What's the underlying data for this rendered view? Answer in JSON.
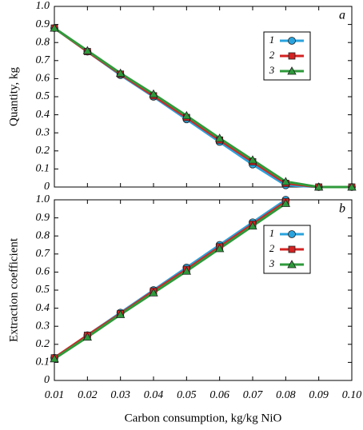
{
  "chart_data": [
    {
      "type": "line",
      "panel_label": "a",
      "ylabel": "Quantity, kg",
      "x": [
        0.01,
        0.02,
        0.03,
        0.04,
        0.05,
        0.06,
        0.07,
        0.08,
        0.09,
        0.1
      ],
      "xlim": [
        0.01,
        0.1
      ],
      "ylim": [
        0,
        1
      ],
      "yticks": [
        0,
        0.1,
        0.2,
        0.3,
        0.4,
        0.5,
        0.6,
        0.7,
        0.8,
        0.9,
        {
          "value": 1,
          "label": "1.0"
        }
      ],
      "legend": "upper right",
      "series": [
        {
          "name": "1",
          "color": "#2aa3dd",
          "marker": "circle",
          "values": [
            0.88,
            0.75,
            0.62,
            0.5,
            0.375,
            0.25,
            0.125,
            0.01,
            0,
            0
          ]
        },
        {
          "name": "2",
          "color": "#d42222",
          "marker": "square",
          "values": [
            0.88,
            0.75,
            0.625,
            0.505,
            0.385,
            0.26,
            0.14,
            0.02,
            0,
            0
          ]
        },
        {
          "name": "3",
          "color": "#2e9a3b",
          "marker": "triangle",
          "values": [
            0.88,
            0.755,
            0.63,
            0.515,
            0.395,
            0.27,
            0.15,
            0.03,
            0,
            0
          ]
        }
      ]
    },
    {
      "type": "line",
      "panel_label": "b",
      "ylabel": "Extraction coefficient",
      "xlabel": "Carbon consumption, kg/kg NiO",
      "x": [
        0.01,
        0.02,
        0.03,
        0.04,
        0.05,
        0.06,
        0.07,
        0.08
      ],
      "xlim": [
        0.01,
        0.1
      ],
      "xticks": [
        0.01,
        0.02,
        0.03,
        0.04,
        0.05,
        0.06,
        0.07,
        0.08,
        0.09,
        {
          "value": 0.1,
          "label": "0.10"
        }
      ],
      "ylim": [
        0,
        1
      ],
      "yticks": [
        0,
        0.1,
        0.2,
        0.3,
        0.4,
        0.5,
        0.6,
        0.7,
        0.8,
        0.9,
        {
          "value": 1,
          "label": "1.0"
        }
      ],
      "legend": "upper right",
      "series": [
        {
          "name": "1",
          "color": "#2aa3dd",
          "marker": "circle",
          "values": [
            0.125,
            0.25,
            0.375,
            0.5,
            0.625,
            0.75,
            0.875,
            1.0
          ]
        },
        {
          "name": "2",
          "color": "#d42222",
          "marker": "square",
          "values": [
            0.125,
            0.25,
            0.37,
            0.495,
            0.615,
            0.74,
            0.865,
            0.99
          ]
        },
        {
          "name": "3",
          "color": "#2e9a3b",
          "marker": "triangle",
          "values": [
            0.12,
            0.24,
            0.365,
            0.485,
            0.605,
            0.73,
            0.855,
            0.98
          ]
        }
      ]
    }
  ]
}
